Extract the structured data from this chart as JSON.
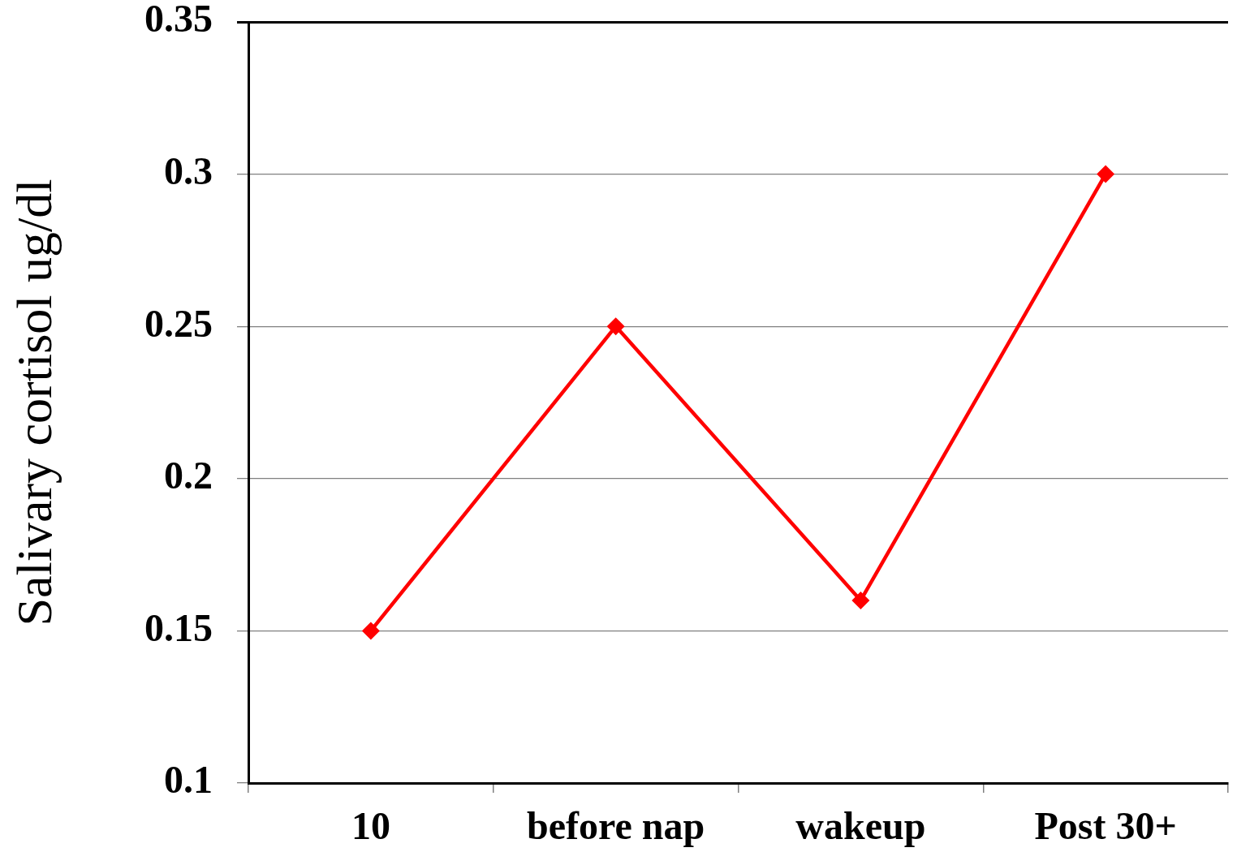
{
  "chart_data": {
    "type": "line",
    "ylabel": "Salivary cortisol ug/dl",
    "categories": [
      "10",
      "before nap",
      "wakeup",
      "Post 30+"
    ],
    "series": [
      {
        "color": "#ff0000",
        "values": [
          0.15,
          0.25,
          0.16,
          0.3
        ]
      }
    ],
    "ylim": [
      0.1,
      0.35
    ],
    "yticks": [
      0.1,
      0.15,
      0.2,
      0.25,
      0.3,
      0.35
    ],
    "grid": "y",
    "marker": "diamond",
    "line_style": "solid"
  }
}
